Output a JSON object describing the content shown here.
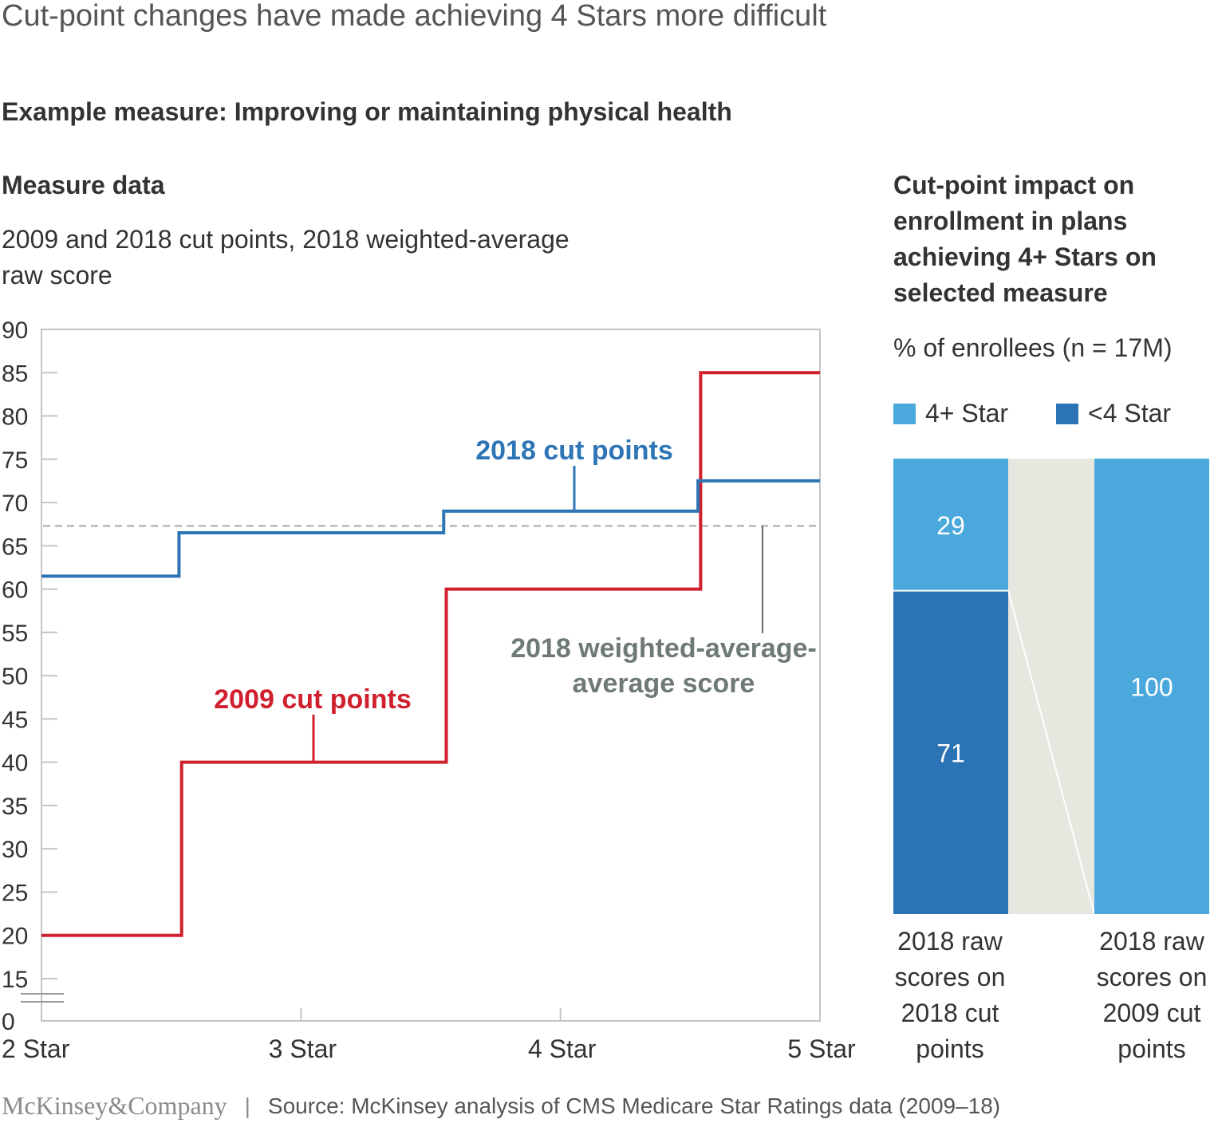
{
  "title": "Cut-point changes have made achieving 4 Stars more difficult",
  "subtitle": "Example measure: Improving or maintaining physical health",
  "left_panel": {
    "title": "Measure data",
    "subtitle": "2009 and 2018 cut points, 2018 weighted-average raw score"
  },
  "right_panel": {
    "title": "Cut-point impact on enrollment in plans achieving 4+ Stars on selected measure",
    "subtitle": "% of enrollees (n = 17M)",
    "legend": [
      {
        "label": "4+ Star",
        "color": "#4BA8DC"
      },
      {
        "label": "<4 Star",
        "color": "#2A73B5"
      }
    ]
  },
  "footer": {
    "logo": "McKinsey&Company",
    "separator": "|",
    "source": "Source: McKinsey analysis of CMS Medicare Star Ratings data (2009–18)"
  },
  "chart_data": [
    {
      "type": "line",
      "step": true,
      "x_categories": [
        "2 Star",
        "3 Star",
        "4 Star",
        "5 Star"
      ],
      "y_ticks": [
        0,
        15,
        20,
        25,
        30,
        35,
        40,
        45,
        50,
        55,
        60,
        65,
        70,
        75,
        80,
        85,
        90
      ],
      "ylim": [
        0,
        90
      ],
      "axis_break": true,
      "series": [
        {
          "name": "2009 cut points",
          "color": "#D0202E",
          "x": [
            0,
            0.54,
            0.54,
            1.56,
            1.56,
            2.54,
            2.54,
            3.0
          ],
          "y": [
            20,
            20,
            40,
            40,
            60,
            60,
            85,
            85
          ]
        },
        {
          "name": "2018 cut points",
          "color": "#2E75B6",
          "x": [
            0,
            0.53,
            0.53,
            1.55,
            1.55,
            2.53,
            2.53,
            3.0
          ],
          "y": [
            61.5,
            61.5,
            66.5,
            66.5,
            69,
            69,
            72.5,
            72.5
          ]
        }
      ],
      "reference_lines": [
        {
          "name": "2018 weighted-average score",
          "value": 67.3,
          "color": "#9A9A9A",
          "style": "dashed"
        }
      ]
    },
    {
      "type": "bar",
      "stacked": true,
      "categories": [
        "2018 raw scores on 2018 cut points",
        "2018 raw scores on 2009 cut points"
      ],
      "series": [
        {
          "name": "<4 Star",
          "color": "#2A73B5",
          "values": [
            71,
            0
          ]
        },
        {
          "name": "4+ Star",
          "color": "#4BA8DC",
          "values": [
            29,
            100
          ]
        }
      ],
      "ylim": [
        0,
        100
      ]
    }
  ]
}
